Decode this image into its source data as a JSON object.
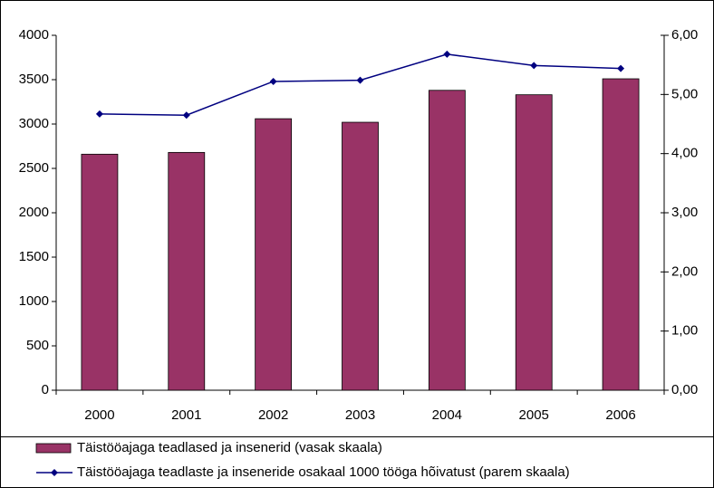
{
  "chart_data": {
    "type": "bar",
    "categories": [
      "2000",
      "2001",
      "2002",
      "2003",
      "2004",
      "2005",
      "2006"
    ],
    "series": [
      {
        "name": "Täistööajaga teadlased ja insenerid (vasak skaala)",
        "type": "bar",
        "color": "#993366",
        "values": [
          2660,
          2680,
          3060,
          3020,
          3380,
          3330,
          3510
        ]
      },
      {
        "name": "Täistööajaga teadlaste ja inseneride osakaal 1000 tööga hõivatust (parem skaala)",
        "type": "line",
        "axis": "y2",
        "color": "#000080",
        "values": [
          4.67,
          4.65,
          5.22,
          5.24,
          5.68,
          5.49,
          5.44
        ]
      }
    ],
    "ylim": [
      0,
      4000
    ],
    "yticks": [
      0,
      500,
      1000,
      1500,
      2000,
      2500,
      3000,
      3500,
      4000
    ],
    "y2lim": [
      0,
      6
    ],
    "y2ticks": [
      {
        "value": 0,
        "label": "0,00"
      },
      {
        "value": 1,
        "label": "1,00"
      },
      {
        "value": 2,
        "label": "2,00"
      },
      {
        "value": 3,
        "label": "3,00"
      },
      {
        "value": 4,
        "label": "4,00"
      },
      {
        "value": 5,
        "label": "5,00"
      },
      {
        "value": 6,
        "label": "6,00"
      }
    ],
    "grid": false,
    "legend": "bottom"
  }
}
